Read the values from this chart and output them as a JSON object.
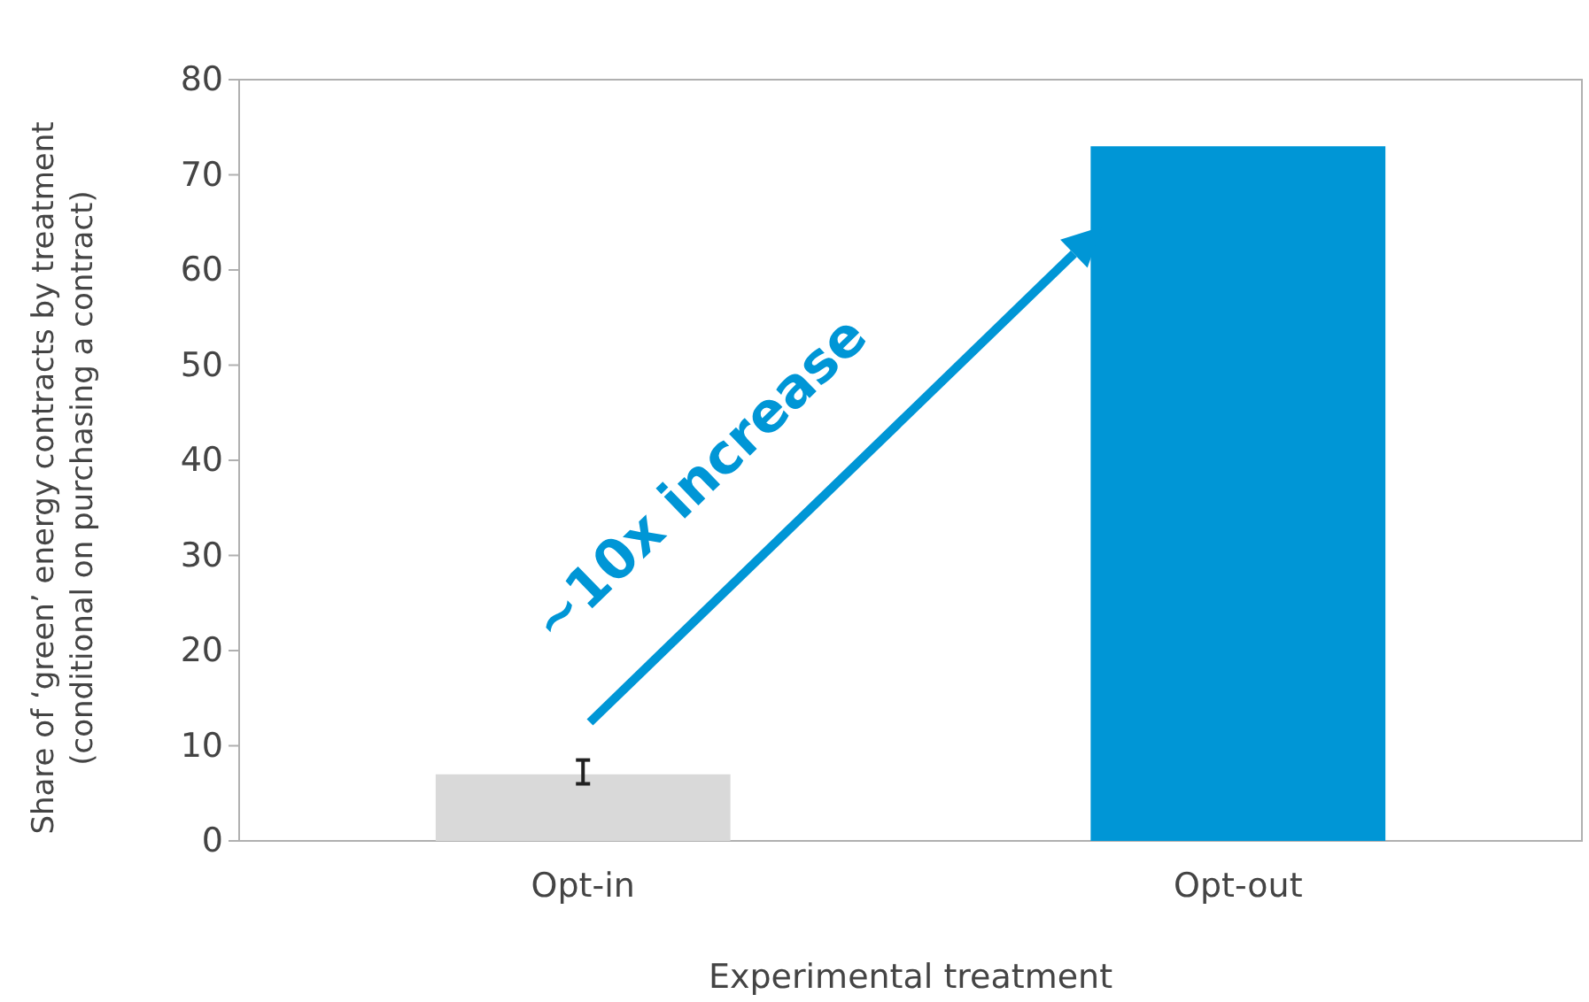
{
  "chart_data": {
    "type": "bar",
    "xlabel": "Experimental treatment",
    "ylabel": "Share of ‘green’ energy contracts by treatment (conditional on purchasing a contract)",
    "categories": [
      "Opt-in",
      "Opt-out"
    ],
    "values": [
      7,
      73
    ],
    "colors": [
      "#d9d9d9",
      "#0096d6"
    ],
    "errors": [
      [
        6,
        8.5
      ],
      null
    ],
    "ylim": [
      0,
      80
    ],
    "yticks": [
      0,
      10,
      20,
      30,
      40,
      50,
      60,
      70,
      80
    ],
    "grid": false,
    "annotations": [
      "~10x increase"
    ]
  }
}
